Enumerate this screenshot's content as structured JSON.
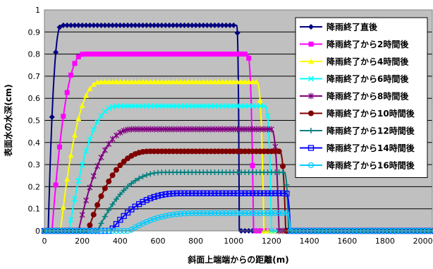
{
  "chart_data": {
    "type": "line",
    "xlabel": "斜面上端端からの距離(m)",
    "ylabel": "表面水の水深(cm)",
    "xlim": [
      0,
      2050
    ],
    "ylim": [
      0,
      1
    ],
    "xticks": [
      "0",
      "200",
      "400",
      "600",
      "800",
      "1000",
      "1200",
      "1400",
      "1600",
      "1800",
      "2000"
    ],
    "yticks": [
      "0",
      "0.1",
      "0.2",
      "0.3",
      "0.4",
      "0.5",
      "0.6",
      "0.7",
      "0.8",
      "0.9",
      "1"
    ],
    "grid": "horizontal",
    "legend_position": "right",
    "plot_background": "#c0c0c0",
    "series": [
      {
        "name": "降雨終了直後",
        "color": "#000080",
        "marker": "diamond",
        "plateau": 0.93,
        "rise_start": 20,
        "rise_end": 90,
        "fall_start": 1015,
        "fall_end": 1030
      },
      {
        "name": "降雨終了から2時間後",
        "color": "#ff00ff",
        "marker": "square",
        "plateau": 0.8,
        "rise_start": 40,
        "rise_end": 210,
        "fall_start": 1070,
        "fall_end": 1105
      },
      {
        "name": "降雨終了から4時間後",
        "color": "#ffff00",
        "marker": "triangle",
        "plateau": 0.675,
        "rise_start": 85,
        "rise_end": 300,
        "fall_start": 1120,
        "fall_end": 1160
      },
      {
        "name": "降雨終了から6時間後",
        "color": "#00ffff",
        "marker": "x",
        "plateau": 0.565,
        "rise_start": 130,
        "rise_end": 390,
        "fall_start": 1165,
        "fall_end": 1200
      },
      {
        "name": "降雨終了から8時間後",
        "color": "#800080",
        "marker": "star",
        "plateau": 0.46,
        "rise_start": 180,
        "rise_end": 470,
        "fall_start": 1195,
        "fall_end": 1240
      },
      {
        "name": "降雨終了から10時間後",
        "color": "#800000",
        "marker": "circle",
        "plateau": 0.36,
        "rise_start": 230,
        "rise_end": 560,
        "fall_start": 1240,
        "fall_end": 1275
      },
      {
        "name": "降雨終了から12時間後",
        "color": "#008080",
        "marker": "plus",
        "plateau": 0.265,
        "rise_start": 280,
        "rise_end": 640,
        "fall_start": 1265,
        "fall_end": 1290
      },
      {
        "name": "降雨終了から14時間後",
        "color": "#0000ff",
        "marker": "open-square",
        "plateau": 0.17,
        "rise_start": 350,
        "rise_end": 720,
        "fall_start": 1275,
        "fall_end": 1300
      },
      {
        "name": "降雨終了から16時間後",
        "color": "#00ccff",
        "marker": "open-circle",
        "plateau": 0.08,
        "rise_start": 450,
        "rise_end": 800,
        "fall_start": 1280,
        "fall_end": 1300
      }
    ]
  }
}
